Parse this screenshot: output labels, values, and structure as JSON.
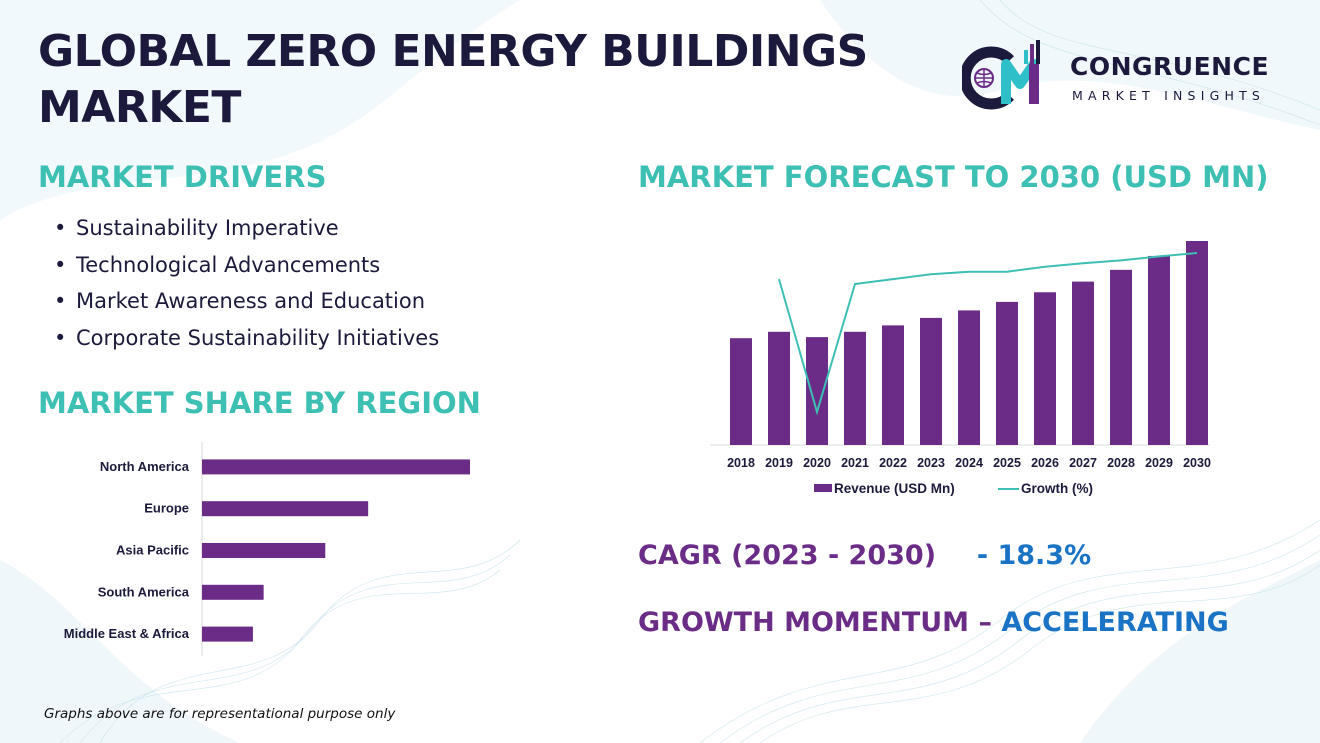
{
  "title": "GLOBAL ZERO ENERGY BUILDINGS MARKET",
  "logo": {
    "name": "CONGRUENCE",
    "tagline": "MARKET INSIGHTS"
  },
  "drivers": {
    "heading": "MARKET DRIVERS",
    "items": [
      "Sustainability Imperative",
      "Technological Advancements",
      "Market Awareness and Education",
      "Corporate Sustainability Initiatives"
    ]
  },
  "region": {
    "heading": "MARKET SHARE BY REGION"
  },
  "forecast": {
    "heading": "MARKET FORECAST TO 2030 (USD MN)"
  },
  "cagr": {
    "label": "CAGR (2023 - 2030)",
    "value": "- 18.3%"
  },
  "momentum": {
    "label": "GROWTH MOMENTUM –",
    "value": "ACCELERATING"
  },
  "footnote": "Graphs above are for representational purpose only",
  "colors": {
    "bar": "#6a2c87",
    "line": "#3ebfb3",
    "heading": "#3ebfb3",
    "title": "#1b1a3c",
    "accent_blue": "#1a73c4"
  },
  "chart_data": [
    {
      "type": "bar",
      "orientation": "horizontal",
      "categories": [
        "North America",
        "Europe",
        "Asia Pacific",
        "South America",
        "Middle East & Africa"
      ],
      "values": [
        100,
        62,
        46,
        23,
        19
      ],
      "grid": false
    },
    {
      "type": "bar",
      "categories": [
        "2018",
        "2019",
        "2020",
        "2021",
        "2022",
        "2023",
        "2024",
        "2025",
        "2026",
        "2027",
        "2028",
        "2029",
        "2030"
      ],
      "series": [
        {
          "name": "Revenue (USD Mn)",
          "type": "bar",
          "values": [
            100,
            106,
            101,
            106,
            112,
            119,
            126,
            134,
            143,
            153,
            164,
            177,
            191
          ]
        },
        {
          "name": "Growth (%)",
          "type": "line",
          "values": [
            null,
            15,
            -12,
            14,
            15,
            16,
            16.5,
            16.5,
            17.5,
            18.2,
            18.8,
            19.6,
            20.3
          ]
        }
      ],
      "legend": "bottom",
      "grid": false
    }
  ]
}
